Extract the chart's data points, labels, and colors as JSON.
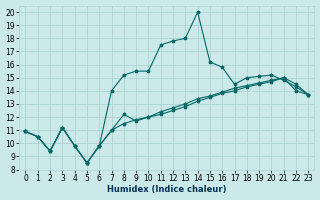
{
  "xlabel": "Humidex (Indice chaleur)",
  "background_color": "#cce9e9",
  "grid_color": "#add4d4",
  "line_color": "#006868",
  "xlim": [
    -0.5,
    23.5
  ],
  "ylim": [
    8,
    20.5
  ],
  "xticks": [
    0,
    1,
    2,
    3,
    4,
    5,
    6,
    7,
    8,
    9,
    10,
    11,
    12,
    13,
    14,
    15,
    16,
    17,
    18,
    19,
    20,
    21,
    22,
    23
  ],
  "yticks": [
    8,
    9,
    10,
    11,
    12,
    13,
    14,
    15,
    16,
    17,
    18,
    19,
    20
  ],
  "line1_x": [
    0,
    1,
    2,
    3,
    4,
    5,
    6,
    7,
    8,
    9,
    10,
    11,
    12,
    13,
    14,
    15,
    16,
    17,
    18,
    19,
    20,
    21,
    22,
    23
  ],
  "line1_y": [
    10.9,
    10.5,
    9.4,
    11.2,
    9.8,
    8.5,
    9.8,
    11.0,
    12.2,
    11.7,
    12.0,
    12.2,
    12.5,
    12.8,
    13.2,
    13.5,
    13.8,
    14.0,
    14.3,
    14.5,
    14.7,
    15.0,
    14.5,
    13.7
  ],
  "line2_x": [
    0,
    1,
    2,
    3,
    4,
    5,
    6,
    7,
    8,
    9,
    10,
    11,
    12,
    13,
    14,
    15,
    16,
    17,
    18,
    19,
    20,
    21,
    22,
    23
  ],
  "line2_y": [
    10.9,
    10.5,
    9.4,
    11.2,
    9.8,
    8.5,
    9.8,
    14.0,
    15.2,
    15.5,
    15.5,
    17.5,
    17.8,
    18.0,
    20.0,
    16.2,
    15.8,
    14.5,
    15.0,
    15.1,
    15.2,
    14.8,
    14.3,
    13.7
  ],
  "line3_x": [
    0,
    1,
    2,
    3,
    4,
    5,
    6,
    7,
    8,
    9,
    10,
    11,
    12,
    13,
    14,
    15,
    16,
    17,
    18,
    19,
    20,
    21,
    22,
    23
  ],
  "line3_y": [
    10.9,
    10.5,
    9.4,
    11.2,
    9.8,
    8.5,
    9.8,
    11.0,
    11.5,
    11.8,
    12.0,
    12.4,
    12.7,
    13.0,
    13.4,
    13.6,
    13.9,
    14.2,
    14.4,
    14.6,
    14.8,
    15.0,
    14.0,
    13.7
  ]
}
